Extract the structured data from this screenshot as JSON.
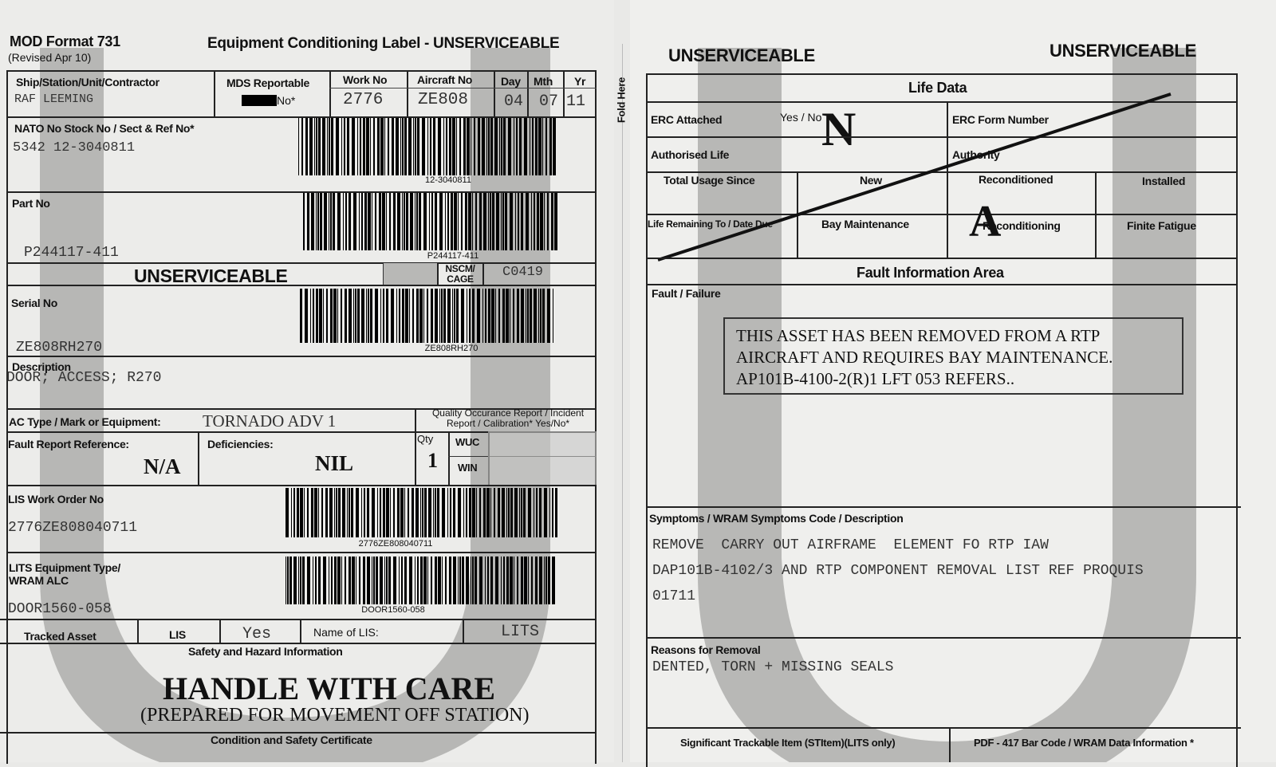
{
  "left": {
    "form_id": "MOD Format 731",
    "revised": "(Revised Apr 10)",
    "title": "Equipment Conditioning Label - UNSERVICEABLE",
    "ship_label": "Ship/Station/Unit/Contractor",
    "ship_value": "RAF LEEMING",
    "mds_label": "MDS Reportable",
    "mds_value": "No*",
    "work_label": "Work No",
    "work_value": "2776",
    "aircraft_label": "Aircraft No",
    "aircraft_value": "ZE808",
    "day_label": "Day",
    "day_value": "04",
    "mth_label": "Mth",
    "mth_value": "07",
    "yr_label": "Yr",
    "yr_value": "11",
    "nato_label": "NATO No Stock No / Sect & Ref No*",
    "nato_value": "5342 12-3040811",
    "nato_barcode": "12-3040811",
    "part_label": "Part No",
    "part_value": "P244117-411",
    "part_barcode": "P244117-411",
    "status": "UNSERVICEABLE",
    "nscm_label": "NSCM/ CAGE",
    "nscm_value": "C0419",
    "serial_label": "Serial No",
    "serial_value": "ZE808RH270",
    "serial_barcode": "ZE808RH270",
    "desc_label": "Description",
    "desc_value": "DOOR; ACCESS; R270",
    "actype_label": "AC Type / Mark or Equipment:",
    "actype_value": "TORNADO ADV 1",
    "qor_label": "Quality Occurance Report / Incident Report / Calibration* Yes/No*",
    "fault_ref_label": "Fault Report Reference:",
    "fault_ref_value": "N/A",
    "def_label": "Deficiencies:",
    "def_value": "NIL",
    "qty_label": "Qty",
    "qty_value": "1",
    "wuc_label": "WUC",
    "win_label": "WIN",
    "lis_wo_label": "LIS Work Order No",
    "lis_wo_value": "2776ZE808040711",
    "lis_wo_barcode": "2776ZE808040711",
    "lits_label": "LITS Equipment Type/ WRAM ALC",
    "lits_value": "DOOR1560-058",
    "lits_barcode": "DOOR1560-058",
    "tracked_label": "Tracked Asset",
    "lis_label": "LIS",
    "lis_value": "Yes",
    "name_lis_label": "Name of LIS:",
    "name_lis_value": "LITS",
    "safety_label": "Safety and Hazard Information",
    "handle": "HANDLE WITH CARE",
    "prepared": "(PREPARED FOR MOVEMENT OFF STATION)",
    "cert_label": "Condition and Safety Certificate"
  },
  "fold": "Fold Here",
  "right": {
    "status_left": "UNSERVICEABLE",
    "status_right": "UNSERVICEABLE",
    "life_title": "Life Data",
    "erc_label": "ERC Attached",
    "erc_yesno": "Yes / No",
    "erc_mark": "N",
    "erc_form_label": "ERC Form Number",
    "auth_life_label": "Authorised Life",
    "authority_label": "Authority",
    "total_usage": "Total Usage Since",
    "new": "New",
    "reconditioned": "Reconditioned",
    "installed": "Installed",
    "life_remaining": "Life Remaining To / Date Due",
    "bay": "Bay Maintenance",
    "reconditioning": "Reconditioning",
    "recon_mark": "A",
    "finite": "Finite Fatigue",
    "fault_area": "Fault Information Area",
    "fault_label": "Fault / Failure",
    "fault_note": [
      "THIS ASSET HAS BEEN REMOVED FROM A RTP",
      "AIRCRAFT AND REQUIRES BAY MAINTENANCE.",
      "AP101B-4100-2(R)1 LFT 053 REFERS.."
    ],
    "symptoms_label": "Symptoms / WRAM Symptoms Code / Description",
    "symptoms_value": [
      "REMOVE  CARRY OUT AIRFRAME  ELEMENT FO RTP IAW",
      "DAP101B-4102/3 AND RTP COMPONENT REMOVAL LIST REF PROQUIS",
      "01711"
    ],
    "reasons_label": "Reasons for Removal",
    "reasons_value": "DENTED, TORN + MISSING SEALS",
    "stitem_label": "Significant Trackable Item (STItem)(LITS only)",
    "pdf_label": "PDF - 417 Bar Code / WRAM Data Information *"
  },
  "colors": {
    "paper": "#ececea",
    "watermark": "#9a9a98",
    "ink": "#111111"
  }
}
